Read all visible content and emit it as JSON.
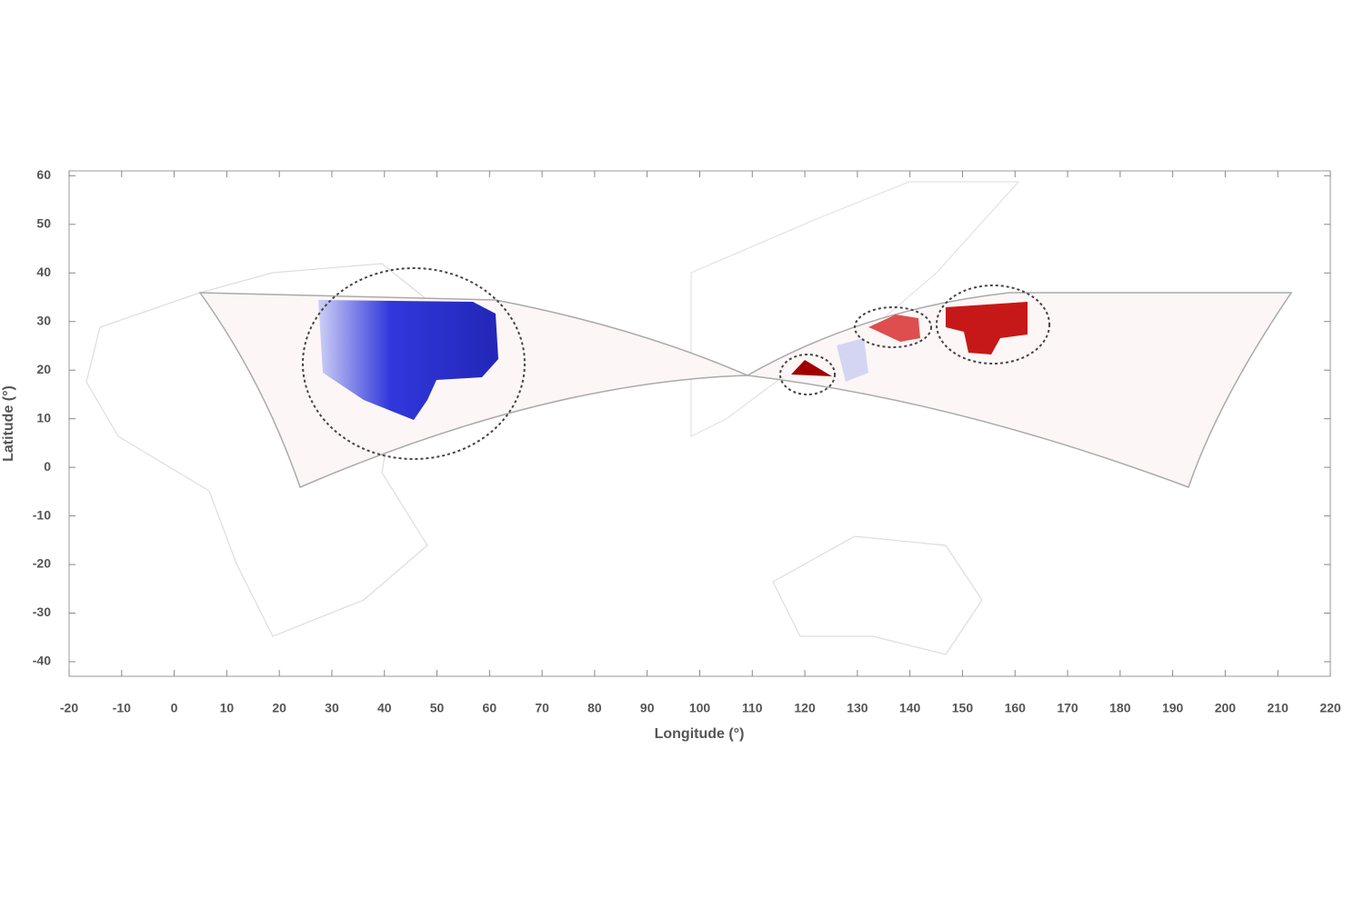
{
  "chart_data": {
    "type": "map",
    "x_label": "Longitude (°)",
    "y_label": "Latitude (°)",
    "xlim": [
      -20,
      220
    ],
    "ylim": [
      -43,
      61
    ],
    "xticks": [
      -20,
      -10,
      0,
      10,
      20,
      30,
      40,
      50,
      60,
      70,
      80,
      90,
      100,
      110,
      120,
      130,
      140,
      150,
      160,
      170,
      180,
      190,
      200,
      210,
      220
    ],
    "yticks": [
      -40,
      -30,
      -20,
      -10,
      0,
      10,
      20,
      30,
      40,
      50,
      60
    ]
  }
}
